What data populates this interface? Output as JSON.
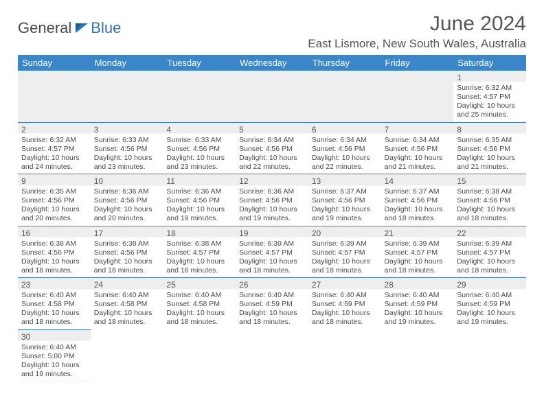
{
  "logo": {
    "general": "General",
    "blue": "Blue"
  },
  "title": "June 2024",
  "location": "East Lismore, New South Wales, Australia",
  "colors": {
    "header_bg": "#3b86c8",
    "header_fg": "#ffffff",
    "cell_border": "#3b86c8",
    "empty_bg": "#eeeeee",
    "text": "#4a4a4a"
  },
  "weekdays": [
    "Sunday",
    "Monday",
    "Tuesday",
    "Wednesday",
    "Thursday",
    "Friday",
    "Saturday"
  ],
  "weeks": [
    [
      null,
      null,
      null,
      null,
      null,
      null,
      {
        "n": "1",
        "sr": "Sunrise: 6:32 AM",
        "ss": "Sunset: 4:57 PM",
        "dl1": "Daylight: 10 hours",
        "dl2": "and 25 minutes."
      }
    ],
    [
      {
        "n": "2",
        "sr": "Sunrise: 6:32 AM",
        "ss": "Sunset: 4:57 PM",
        "dl1": "Daylight: 10 hours",
        "dl2": "and 24 minutes."
      },
      {
        "n": "3",
        "sr": "Sunrise: 6:33 AM",
        "ss": "Sunset: 4:56 PM",
        "dl1": "Daylight: 10 hours",
        "dl2": "and 23 minutes."
      },
      {
        "n": "4",
        "sr": "Sunrise: 6:33 AM",
        "ss": "Sunset: 4:56 PM",
        "dl1": "Daylight: 10 hours",
        "dl2": "and 23 minutes."
      },
      {
        "n": "5",
        "sr": "Sunrise: 6:34 AM",
        "ss": "Sunset: 4:56 PM",
        "dl1": "Daylight: 10 hours",
        "dl2": "and 22 minutes."
      },
      {
        "n": "6",
        "sr": "Sunrise: 6:34 AM",
        "ss": "Sunset: 4:56 PM",
        "dl1": "Daylight: 10 hours",
        "dl2": "and 22 minutes."
      },
      {
        "n": "7",
        "sr": "Sunrise: 6:34 AM",
        "ss": "Sunset: 4:56 PM",
        "dl1": "Daylight: 10 hours",
        "dl2": "and 21 minutes."
      },
      {
        "n": "8",
        "sr": "Sunrise: 6:35 AM",
        "ss": "Sunset: 4:56 PM",
        "dl1": "Daylight: 10 hours",
        "dl2": "and 21 minutes."
      }
    ],
    [
      {
        "n": "9",
        "sr": "Sunrise: 6:35 AM",
        "ss": "Sunset: 4:56 PM",
        "dl1": "Daylight: 10 hours",
        "dl2": "and 20 minutes."
      },
      {
        "n": "10",
        "sr": "Sunrise: 6:36 AM",
        "ss": "Sunset: 4:56 PM",
        "dl1": "Daylight: 10 hours",
        "dl2": "and 20 minutes."
      },
      {
        "n": "11",
        "sr": "Sunrise: 6:36 AM",
        "ss": "Sunset: 4:56 PM",
        "dl1": "Daylight: 10 hours",
        "dl2": "and 19 minutes."
      },
      {
        "n": "12",
        "sr": "Sunrise: 6:36 AM",
        "ss": "Sunset: 4:56 PM",
        "dl1": "Daylight: 10 hours",
        "dl2": "and 19 minutes."
      },
      {
        "n": "13",
        "sr": "Sunrise: 6:37 AM",
        "ss": "Sunset: 4:56 PM",
        "dl1": "Daylight: 10 hours",
        "dl2": "and 19 minutes."
      },
      {
        "n": "14",
        "sr": "Sunrise: 6:37 AM",
        "ss": "Sunset: 4:56 PM",
        "dl1": "Daylight: 10 hours",
        "dl2": "and 18 minutes."
      },
      {
        "n": "15",
        "sr": "Sunrise: 6:38 AM",
        "ss": "Sunset: 4:56 PM",
        "dl1": "Daylight: 10 hours",
        "dl2": "and 18 minutes."
      }
    ],
    [
      {
        "n": "16",
        "sr": "Sunrise: 6:38 AM",
        "ss": "Sunset: 4:56 PM",
        "dl1": "Daylight: 10 hours",
        "dl2": "and 18 minutes."
      },
      {
        "n": "17",
        "sr": "Sunrise: 6:38 AM",
        "ss": "Sunset: 4:56 PM",
        "dl1": "Daylight: 10 hours",
        "dl2": "and 18 minutes."
      },
      {
        "n": "18",
        "sr": "Sunrise: 6:38 AM",
        "ss": "Sunset: 4:57 PM",
        "dl1": "Daylight: 10 hours",
        "dl2": "and 18 minutes."
      },
      {
        "n": "19",
        "sr": "Sunrise: 6:39 AM",
        "ss": "Sunset: 4:57 PM",
        "dl1": "Daylight: 10 hours",
        "dl2": "and 18 minutes."
      },
      {
        "n": "20",
        "sr": "Sunrise: 6:39 AM",
        "ss": "Sunset: 4:57 PM",
        "dl1": "Daylight: 10 hours",
        "dl2": "and 18 minutes."
      },
      {
        "n": "21",
        "sr": "Sunrise: 6:39 AM",
        "ss": "Sunset: 4:57 PM",
        "dl1": "Daylight: 10 hours",
        "dl2": "and 18 minutes."
      },
      {
        "n": "22",
        "sr": "Sunrise: 6:39 AM",
        "ss": "Sunset: 4:57 PM",
        "dl1": "Daylight: 10 hours",
        "dl2": "and 18 minutes."
      }
    ],
    [
      {
        "n": "23",
        "sr": "Sunrise: 6:40 AM",
        "ss": "Sunset: 4:58 PM",
        "dl1": "Daylight: 10 hours",
        "dl2": "and 18 minutes."
      },
      {
        "n": "24",
        "sr": "Sunrise: 6:40 AM",
        "ss": "Sunset: 4:58 PM",
        "dl1": "Daylight: 10 hours",
        "dl2": "and 18 minutes."
      },
      {
        "n": "25",
        "sr": "Sunrise: 6:40 AM",
        "ss": "Sunset: 4:58 PM",
        "dl1": "Daylight: 10 hours",
        "dl2": "and 18 minutes."
      },
      {
        "n": "26",
        "sr": "Sunrise: 6:40 AM",
        "ss": "Sunset: 4:59 PM",
        "dl1": "Daylight: 10 hours",
        "dl2": "and 18 minutes."
      },
      {
        "n": "27",
        "sr": "Sunrise: 6:40 AM",
        "ss": "Sunset: 4:59 PM",
        "dl1": "Daylight: 10 hours",
        "dl2": "and 18 minutes."
      },
      {
        "n": "28",
        "sr": "Sunrise: 6:40 AM",
        "ss": "Sunset: 4:59 PM",
        "dl1": "Daylight: 10 hours",
        "dl2": "and 19 minutes."
      },
      {
        "n": "29",
        "sr": "Sunrise: 6:40 AM",
        "ss": "Sunset: 4:59 PM",
        "dl1": "Daylight: 10 hours",
        "dl2": "and 19 minutes."
      }
    ],
    [
      {
        "n": "30",
        "sr": "Sunrise: 6:40 AM",
        "ss": "Sunset: 5:00 PM",
        "dl1": "Daylight: 10 hours",
        "dl2": "and 19 minutes."
      },
      null,
      null,
      null,
      null,
      null,
      null
    ]
  ]
}
